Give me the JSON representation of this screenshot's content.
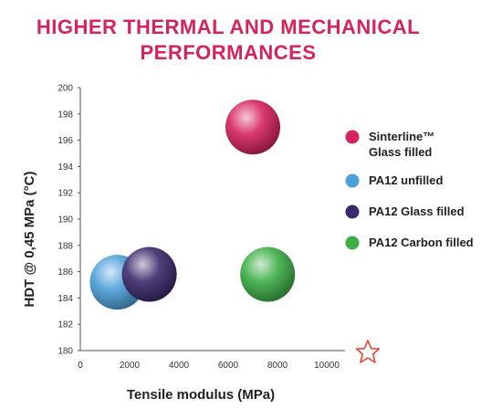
{
  "header": {
    "title_line1": "HIGHER THERMAL AND MECHANICAL",
    "title_line2": "PERFORMANCES"
  },
  "chart_data": {
    "type": "scatter",
    "title": "HIGHER THERMAL AND MECHANICAL PERFORMANCES",
    "xlabel": "Tensile modulus (MPa)",
    "ylabel": "HDT @ 0,45 MPa (°C)",
    "xlim": [
      0,
      10000
    ],
    "ylim": [
      180,
      200
    ],
    "xticks": [
      "0",
      "2000",
      "4000",
      "6000",
      "8000",
      "10000"
    ],
    "yticks": [
      "180",
      "182",
      "184",
      "186",
      "188",
      "190",
      "192",
      "194",
      "196",
      "198",
      "200"
    ],
    "grid": false,
    "legend_position": "right",
    "series": [
      {
        "name": "Sinterline™ Glass filled",
        "label_line1": "Sinterline™",
        "label_line2": "Glass filled",
        "x": 7000,
        "y": 197,
        "color": "#d6245e"
      },
      {
        "name": "PA12 unfilled",
        "label_line1": "PA12 unfilled",
        "label_line2": "",
        "x": 1500,
        "y": 185.2,
        "color": "#4d9fd9"
      },
      {
        "name": "PA12 Glass filled",
        "label_line1": "PA12 Glass filled",
        "label_line2": "",
        "x": 2800,
        "y": 185.8,
        "color": "#3a2a6b"
      },
      {
        "name": "PA12 Carbon filled",
        "label_line1": "PA12 Carbon filled",
        "label_line2": "",
        "x": 7600,
        "y": 185.8,
        "color": "#3eae48"
      }
    ],
    "colors": {
      "title": "#d3245d",
      "axis": "#555555",
      "star": "#e0483c"
    }
  }
}
